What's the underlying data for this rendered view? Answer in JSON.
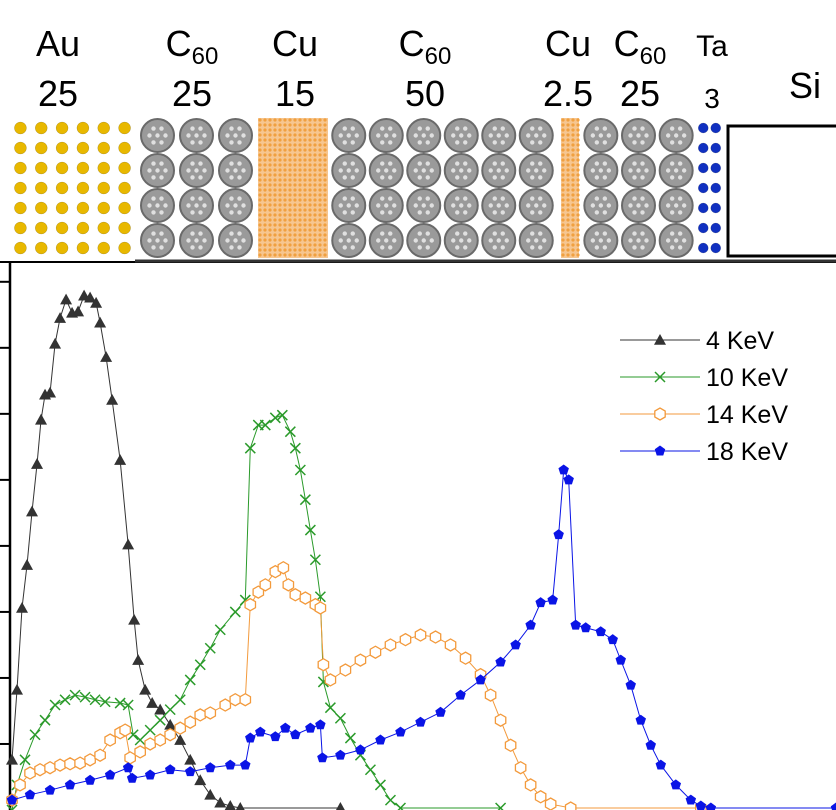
{
  "schematic": {
    "layers": [
      {
        "material": "Au",
        "subscript": "",
        "thickness": "25",
        "color": "#e8b800"
      },
      {
        "material": "C",
        "subscript": "60",
        "thickness": "25",
        "color": "#8a8a8a"
      },
      {
        "material": "Cu",
        "subscript": "",
        "thickness": "15",
        "color": "#f0a040"
      },
      {
        "material": "C",
        "subscript": "60",
        "thickness": "50",
        "color": "#8a8a8a"
      },
      {
        "material": "Cu",
        "subscript": "",
        "thickness": "2.5",
        "color": "#f0a040"
      },
      {
        "material": "C",
        "subscript": "60",
        "thickness": "25",
        "color": "#8a8a8a"
      },
      {
        "material": "Ta",
        "subscript": "",
        "thickness": "3",
        "color": "#1030c0"
      }
    ],
    "substrate": "Si"
  },
  "chart_data": {
    "type": "line",
    "title": "",
    "xlabel": "",
    "ylabel": "",
    "xlim": [
      0,
      165
    ],
    "ylim": [
      0,
      8.3
    ],
    "yticks": [
      1,
      2,
      3,
      4,
      5,
      6,
      7,
      8
    ],
    "grid": false,
    "legend_position": "top-right",
    "series": [
      {
        "name": "4 KeV",
        "color": "#333333",
        "marker": "triangle",
        "x": [
          0.4,
          1.4,
          2.4,
          3.4,
          4.4,
          5.4,
          6.2,
          7.0,
          8.0,
          9.0,
          10.0,
          11.2,
          12.4,
          13.6,
          14.8,
          16.0,
          17.2,
          18.0,
          19.2,
          20.4,
          22.0,
          23.6,
          24.8,
          25.6,
          27.0,
          28.4,
          30.0,
          32.0,
          34.0,
          36.0,
          38.0,
          40.0,
          42.0,
          44.0,
          46.0,
          66.0
        ],
        "y": [
          0.76,
          1.82,
          3.06,
          3.71,
          4.52,
          5.24,
          5.91,
          6.29,
          6.32,
          7.06,
          7.45,
          7.73,
          7.53,
          7.55,
          7.79,
          7.76,
          7.68,
          7.38,
          6.86,
          6.21,
          5.3,
          4.02,
          2.88,
          2.27,
          1.82,
          1.62,
          1.52,
          1.29,
          1.06,
          0.76,
          0.45,
          0.23,
          0.11,
          0.06,
          0.03,
          0.03
        ]
      },
      {
        "name": "10 KeV",
        "color": "#2a9a2a",
        "marker": "x",
        "x": [
          0.4,
          1.4,
          3.0,
          5.0,
          7.0,
          9.0,
          11.0,
          13.0,
          15.0,
          17.0,
          19.0,
          22.0,
          23.6,
          24.6,
          26.0,
          28.0,
          30.0,
          32.0,
          34.0,
          36.0,
          38.0,
          40.0,
          42.0,
          45.0,
          47.0,
          48.0,
          49.6,
          51.0,
          53.0,
          54.4,
          56.0,
          57.0,
          58.0,
          59.0,
          60.0,
          61.0,
          62.0,
          62.6,
          64.0,
          66.0,
          68.0,
          70.0,
          72.0,
          74.0,
          76.0,
          78.0,
          98.0
        ],
        "y": [
          0,
          0.38,
          0.76,
          1.14,
          1.36,
          1.59,
          1.67,
          1.74,
          1.71,
          1.67,
          1.64,
          1.62,
          1.59,
          1.14,
          1.06,
          1.21,
          1.36,
          1.52,
          1.67,
          1.97,
          2.2,
          2.45,
          2.73,
          3.0,
          3.18,
          5.48,
          5.83,
          5.83,
          5.94,
          5.98,
          5.73,
          5.48,
          5.15,
          4.7,
          4.24,
          3.79,
          3.23,
          1.94,
          1.55,
          1.39,
          1.09,
          0.83,
          0.61,
          0.38,
          0.15,
          0.03,
          0.03
        ]
      },
      {
        "name": "14 KeV",
        "color": "#f39a3c",
        "marker": "hexagon-open",
        "x": [
          0.4,
          2.0,
          4.0,
          6.0,
          8.0,
          10.0,
          12.0,
          14.0,
          16.0,
          18.0,
          20.0,
          22.0,
          23.0,
          24.0,
          26.0,
          28.0,
          30.0,
          32.0,
          34.0,
          36.0,
          38.0,
          40.0,
          43.0,
          45.0,
          47.0,
          48.0,
          49.6,
          51.0,
          53.0,
          54.6,
          55.6,
          57.0,
          59.0,
          61.0,
          62.0,
          62.6,
          64.0,
          67.0,
          70.0,
          73.0,
          76.0,
          79.0,
          82.0,
          85.0,
          88.0,
          91.0,
          94.0,
          96.0,
          98.0,
          100.0,
          102.0,
          104.0,
          106.0,
          108.0,
          112.0,
          138.0
        ],
        "y": [
          0.15,
          0.38,
          0.56,
          0.61,
          0.64,
          0.68,
          0.7,
          0.71,
          0.76,
          0.83,
          1.06,
          1.17,
          1.21,
          0.79,
          0.88,
          1.0,
          1.06,
          1.14,
          1.24,
          1.33,
          1.44,
          1.47,
          1.59,
          1.67,
          1.67,
          3.11,
          3.3,
          3.41,
          3.61,
          3.67,
          3.41,
          3.26,
          3.21,
          3.11,
          3.06,
          2.2,
          1.97,
          2.12,
          2.27,
          2.39,
          2.5,
          2.58,
          2.65,
          2.62,
          2.5,
          2.3,
          2.05,
          1.74,
          1.36,
          0.98,
          0.64,
          0.38,
          0.2,
          0.09,
          0.03,
          0.03
        ]
      },
      {
        "name": "18 KeV",
        "color": "#0a14e6",
        "marker": "pentagon",
        "x": [
          0.4,
          4.0,
          8.0,
          12.0,
          16.0,
          20.0,
          23.6,
          24.4,
          28.0,
          32.0,
          36.0,
          40.0,
          44.0,
          47.0,
          48.0,
          50.0,
          53.0,
          55.0,
          57.0,
          60.0,
          62.0,
          62.4,
          66.0,
          70.0,
          74.0,
          78.0,
          82.0,
          86.0,
          90.0,
          94.0,
          98.0,
          101.0,
          104.0,
          106.0,
          108.4,
          109.6,
          110.6,
          111.6,
          113.0,
          115.0,
          118.0,
          120.4,
          122.0,
          124.0,
          126.0,
          128.0,
          130.0,
          133.0,
          136.0,
          138.0,
          140.0,
          165.0
        ],
        "y": [
          0.15,
          0.23,
          0.3,
          0.38,
          0.45,
          0.53,
          0.64,
          0.48,
          0.53,
          0.61,
          0.58,
          0.64,
          0.68,
          0.68,
          1.09,
          1.18,
          1.11,
          1.24,
          1.14,
          1.24,
          1.29,
          0.79,
          0.83,
          0.91,
          1.06,
          1.18,
          1.33,
          1.48,
          1.74,
          1.97,
          2.24,
          2.5,
          2.8,
          3.14,
          3.18,
          4.17,
          5.15,
          5.0,
          2.8,
          2.76,
          2.7,
          2.58,
          2.27,
          1.89,
          1.36,
          0.98,
          0.68,
          0.38,
          0.15,
          0.06,
          0.03,
          0.03
        ]
      }
    ]
  }
}
